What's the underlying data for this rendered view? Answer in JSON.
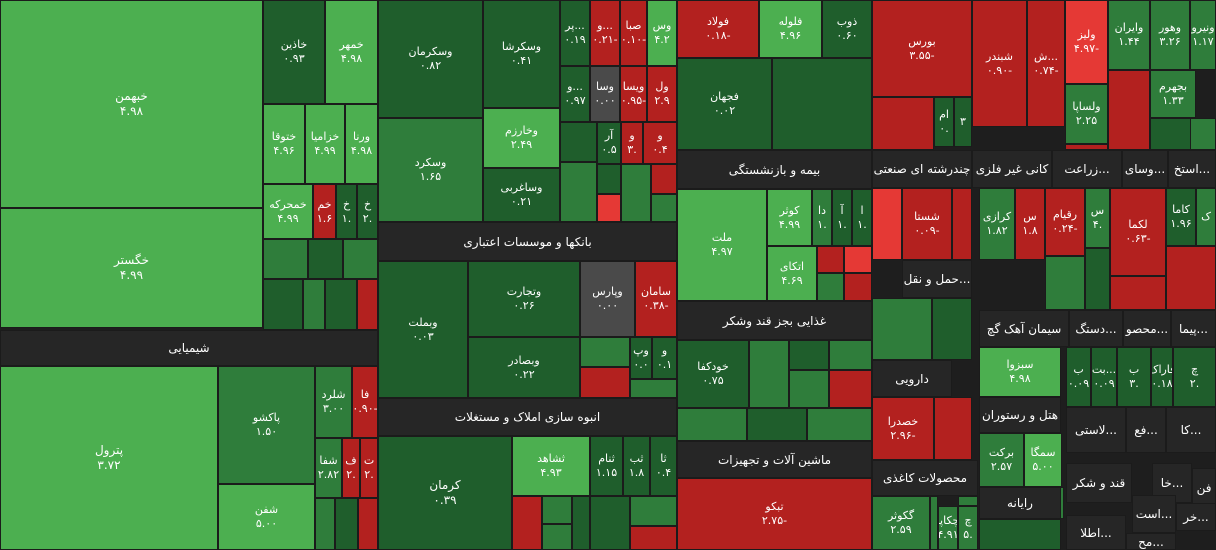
{
  "chart_data": {
    "type": "treemap",
    "colors": {
      "strong_up": "#1f5e2c",
      "up": "#2f7d3b",
      "light_up": "#4caf50",
      "flat": "#4a4a4a",
      "down": "#b3211f",
      "strong_down": "#e53935",
      "header": "#262626"
    },
    "sectors": [
      "شیمیایی",
      "بانکها و موسسات اعتباری",
      "انبوه سازی املاک و مستغلات",
      "بیمه و بازنشستگی",
      "غذایی بجز قند وشکر",
      "ماشین آلات و تجهیزات",
      "چندرشته ای صنعتی",
      "کانی غیر فلزی",
      "زراعت...",
      "وسای...",
      "استخ...",
      "حمل و نقل...",
      "دارویی",
      "محصولات کاغذی",
      "سیمان آهک گچ",
      "دستگ...",
      "محصو...",
      "پیما...",
      "هتل و رستوران",
      "رایانه",
      "لاستی...",
      "فع...",
      "کا...",
      "قند و شکر",
      "فن",
      "خا...",
      "است...",
      "خر...",
      "اطلا...",
      "مح..."
    ],
    "items": [
      {
        "name": "خبهمن",
        "value": "۴.۹۸",
        "shade": "light_up"
      },
      {
        "name": "خگستر",
        "value": "۴.۹۹",
        "shade": "light_up"
      },
      {
        "name": "خاذین",
        "value": "۰.۹۳",
        "shade": "strong_up"
      },
      {
        "name": "خمهر",
        "value": "۴.۹۸",
        "shade": "light_up"
      },
      {
        "name": "ختوقا",
        "value": "۴.۹۶",
        "shade": "light_up"
      },
      {
        "name": "خزامیا",
        "value": "۴.۹۹",
        "shade": "light_up"
      },
      {
        "name": "ورنا",
        "value": "۴.۹۸",
        "shade": "light_up"
      },
      {
        "name": "خمحرکه",
        "value": "۴.۹۹",
        "shade": "light_up"
      },
      {
        "name": "خم",
        "value": "۱.۶",
        "shade": "down"
      },
      {
        "name": "خ",
        "value": "۱.",
        "shade": "strong_up"
      },
      {
        "name": "خ",
        "value": "۲.",
        "shade": "strong_up"
      },
      {
        "name": "پترول",
        "value": "۳.۷۲",
        "shade": "light_up"
      },
      {
        "name": "پاکشو",
        "value": "۱.۵۰",
        "shade": "up"
      },
      {
        "name": "شفن",
        "value": "۵.۰۰",
        "shade": "light_up"
      },
      {
        "name": "شلرد",
        "value": "۳.۰۰",
        "shade": "up"
      },
      {
        "name": "فا",
        "value": "۰.۹۰-",
        "shade": "down"
      },
      {
        "name": "شفا",
        "value": "۲.۸۲",
        "shade": "up"
      },
      {
        "name": "ف",
        "value": "۲.",
        "shade": "down"
      },
      {
        "name": "ت",
        "value": "۲.",
        "shade": "down"
      },
      {
        "name": "وسکرمان",
        "value": "۰.۸۲",
        "shade": "strong_up"
      },
      {
        "name": "وسکرشا",
        "value": "۰.۴۱",
        "shade": "strong_up"
      },
      {
        "name": "وسکرد",
        "value": "۱.۶۵",
        "shade": "up"
      },
      {
        "name": "وخارزم",
        "value": "۲.۴۹",
        "shade": "light_up"
      },
      {
        "name": "وساغربی",
        "value": "۰.۲۱",
        "shade": "strong_up"
      },
      {
        "name": "پر...",
        "value": "۰.۱۹",
        "shade": "strong_up"
      },
      {
        "name": "و...",
        "value": "۰.۲۱-",
        "shade": "down"
      },
      {
        "name": "صبا",
        "value": "۰.۱۰-",
        "shade": "down"
      },
      {
        "name": "وس",
        "value": "۴.۲",
        "shade": "light_up"
      },
      {
        "name": "و...",
        "value": "۰.۹۷",
        "shade": "strong_up"
      },
      {
        "name": "وسا",
        "value": "۰.۰۰",
        "shade": "flat"
      },
      {
        "name": "ویسا",
        "value": "۰.۹۵-",
        "shade": "down"
      },
      {
        "name": "ول",
        "value": "۲.۹",
        "shade": "down"
      },
      {
        "name": "آر",
        "value": "۰.۵",
        "shade": "strong_up"
      },
      {
        "name": "و",
        "value": "۳.",
        "shade": "down"
      },
      {
        "name": "و",
        "value": "۰.۴",
        "shade": "down"
      },
      {
        "name": "وبملت",
        "value": "۰.۰۳",
        "shade": "strong_up"
      },
      {
        "name": "وتجارت",
        "value": "۰.۲۶",
        "shade": "strong_up"
      },
      {
        "name": "وپارس",
        "value": "۰.۰۰",
        "shade": "flat"
      },
      {
        "name": "سامان",
        "value": "۰.۳۸-",
        "shade": "down"
      },
      {
        "name": "وبصادر",
        "value": "۰.۲۲",
        "shade": "strong_up"
      },
      {
        "name": "وپ",
        "value": "۰.۰",
        "shade": "strong_up"
      },
      {
        "name": "و",
        "value": "۰.۱",
        "shade": "strong_up"
      },
      {
        "name": "کرمان",
        "value": "۰.۳۹",
        "shade": "strong_up"
      },
      {
        "name": "ثشاهد",
        "value": "۴.۹۳",
        "shade": "light_up"
      },
      {
        "name": "ثنام",
        "value": "۱.۱۵",
        "shade": "strong_up"
      },
      {
        "name": "ثب",
        "value": "۱.۸",
        "shade": "strong_up"
      },
      {
        "name": "ثا",
        "value": "۰.۴",
        "shade": "strong_up"
      },
      {
        "name": "فولاد",
        "value": "۰.۱۸-",
        "shade": "down"
      },
      {
        "name": "فلوله",
        "value": "۴.۹۶",
        "shade": "light_up"
      },
      {
        "name": "ذوب",
        "value": "۰.۶۰",
        "shade": "strong_up"
      },
      {
        "name": "فجهان",
        "value": "۰.۰۲",
        "shade": "strong_up"
      },
      {
        "name": "ملت",
        "value": "۴.۹۷",
        "shade": "light_up"
      },
      {
        "name": "کوثر",
        "value": "۴.۹۹",
        "shade": "light_up"
      },
      {
        "name": "دا",
        "value": "۱.",
        "shade": "up"
      },
      {
        "name": "آ",
        "value": "۱.",
        "shade": "strong_up"
      },
      {
        "name": "ا",
        "value": "۱.",
        "shade": "strong_up"
      },
      {
        "name": "اتکای",
        "value": "۴.۶۹",
        "shade": "light_up"
      },
      {
        "name": "خودکفا",
        "value": "۰.۷۵",
        "shade": "strong_up"
      },
      {
        "name": "تبکو",
        "value": "۲.۷۵-",
        "shade": "down"
      },
      {
        "name": "بورس",
        "value": "۳.۵۵-",
        "shade": "down"
      },
      {
        "name": "ام",
        "value": "۰.",
        "shade": "strong_up"
      },
      {
        "name": "۳",
        "value": "",
        "shade": "strong_up"
      },
      {
        "name": "شبندر",
        "value": "۰.۹۰-",
        "shade": "down"
      },
      {
        "name": "ش...",
        "value": "۰.۷۴-",
        "shade": "down"
      },
      {
        "name": "ولیز",
        "value": "۴.۹۷-",
        "shade": "strong_down"
      },
      {
        "name": "وایران",
        "value": "۱.۴۴",
        "shade": "up"
      },
      {
        "name": "وهور",
        "value": "۳.۲۶",
        "shade": "up"
      },
      {
        "name": "ونیرو",
        "value": "۱.۱۷",
        "shade": "up"
      },
      {
        "name": "بجهرم",
        "value": "۱.۳۳",
        "shade": "up"
      },
      {
        "name": "ولساپا",
        "value": "۲.۲۵",
        "shade": "up"
      },
      {
        "name": "شستا",
        "value": "۰.۰۹-",
        "shade": "down"
      },
      {
        "name": "کرازی",
        "value": "۱.۸۲",
        "shade": "up"
      },
      {
        "name": "س",
        "value": "۱.۸",
        "shade": "down"
      },
      {
        "name": "رقیام",
        "value": "۰.۲۴-",
        "shade": "down"
      },
      {
        "name": "س",
        "value": "۴.",
        "shade": "up"
      },
      {
        "name": "لکما",
        "value": "۰.۶۳-",
        "shade": "down"
      },
      {
        "name": "کاما",
        "value": "۱.۹۶",
        "shade": "strong_up"
      },
      {
        "name": "ک",
        "value": "",
        "shade": "up"
      },
      {
        "name": "سبزوا",
        "value": "۴.۹۸",
        "shade": "light_up"
      },
      {
        "name": "ب",
        "value": "۰.۰۹",
        "shade": "strong_up"
      },
      {
        "name": "بت...",
        "value": "۰.۰۹",
        "shade": "strong_up"
      },
      {
        "name": "ب",
        "value": "۳.",
        "shade": "strong_up"
      },
      {
        "name": "فاراک",
        "value": "۰.۱۸",
        "shade": "strong_up"
      },
      {
        "name": "چ",
        "value": "۲.",
        "shade": "strong_up"
      },
      {
        "name": "خصدرا",
        "value": "۲.۹۶-",
        "shade": "down"
      },
      {
        "name": "برکت",
        "value": "۲.۵۷",
        "shade": "up"
      },
      {
        "name": "سمگا",
        "value": "۵.۰۰",
        "shade": "light_up"
      },
      {
        "name": "گکوثر",
        "value": "۲.۵۹",
        "shade": "up"
      },
      {
        "name": "چکاپا",
        "value": "۴.۹۱",
        "shade": "up"
      },
      {
        "name": "چ",
        "value": "۵.",
        "shade": "up"
      },
      {
        "name": "چ",
        "value": "۰.",
        "shade": "up"
      }
    ]
  }
}
